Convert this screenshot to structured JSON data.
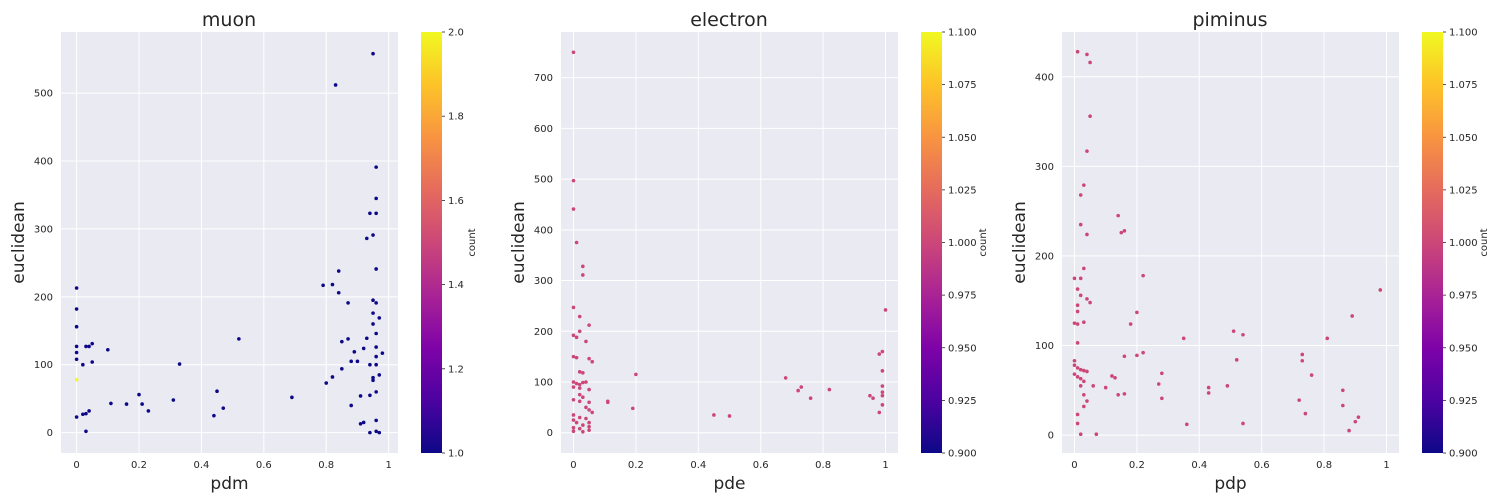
{
  "colors": {
    "axes_bg": "#EAEAF2",
    "grid": "#FFFFFF",
    "point_count_1": "#0D0887",
    "point_count_2": "#F0F921",
    "point_uniform": "#CC4778"
  },
  "chart_data": [
    {
      "type": "scatter",
      "title": "muon",
      "xlabel": "pdm",
      "ylabel": "euclidean",
      "xlim": [
        -0.05,
        1.03
      ],
      "ylim": [
        -30,
        590
      ],
      "xticks": [
        0.0,
        0.2,
        0.4,
        0.6,
        0.8,
        1.0
      ],
      "yticks": [
        0,
        100,
        200,
        300,
        400,
        500
      ],
      "grid": true,
      "colorbar": {
        "label": "count",
        "min": 1.0,
        "max": 2.0,
        "ticks": [
          "1.0",
          "1.2",
          "1.4",
          "1.6",
          "1.8",
          "2.0"
        ],
        "colormap": "plasma"
      },
      "points": [
        [
          0.0,
          213,
          1
        ],
        [
          0.0,
          182,
          1
        ],
        [
          0.0,
          156,
          1
        ],
        [
          0.0,
          127,
          1
        ],
        [
          0.0,
          118,
          1
        ],
        [
          0.0,
          108,
          1
        ],
        [
          0.0,
          78,
          2
        ],
        [
          0.0,
          23,
          1
        ],
        [
          0.02,
          27,
          1
        ],
        [
          0.03,
          28,
          1
        ],
        [
          0.03,
          2,
          1
        ],
        [
          0.02,
          100,
          1
        ],
        [
          0.03,
          127,
          1
        ],
        [
          0.04,
          127,
          1
        ],
        [
          0.04,
          32,
          1
        ],
        [
          0.05,
          104,
          1
        ],
        [
          0.05,
          131,
          1
        ],
        [
          0.1,
          122,
          1
        ],
        [
          0.11,
          43,
          1
        ],
        [
          0.16,
          42,
          1
        ],
        [
          0.2,
          56,
          1
        ],
        [
          0.21,
          42,
          1
        ],
        [
          0.23,
          32,
          1
        ],
        [
          0.31,
          48,
          1
        ],
        [
          0.33,
          101,
          1
        ],
        [
          0.44,
          25,
          1
        ],
        [
          0.45,
          61,
          1
        ],
        [
          0.47,
          36,
          1
        ],
        [
          0.52,
          138,
          1
        ],
        [
          0.69,
          52,
          1
        ],
        [
          0.79,
          217,
          1
        ],
        [
          0.8,
          73,
          1
        ],
        [
          0.82,
          218,
          1
        ],
        [
          0.82,
          82,
          1
        ],
        [
          0.83,
          512,
          1
        ],
        [
          0.84,
          238,
          1
        ],
        [
          0.84,
          206,
          1
        ],
        [
          0.85,
          134,
          1
        ],
        [
          0.85,
          94,
          1
        ],
        [
          0.87,
          191,
          1
        ],
        [
          0.87,
          138,
          1
        ],
        [
          0.88,
          105,
          1
        ],
        [
          0.88,
          40,
          1
        ],
        [
          0.89,
          119,
          1
        ],
        [
          0.9,
          105,
          1
        ],
        [
          0.91,
          54,
          1
        ],
        [
          0.91,
          13,
          1
        ],
        [
          0.92,
          124,
          1
        ],
        [
          0.92,
          15,
          1
        ],
        [
          0.93,
          286,
          1
        ],
        [
          0.93,
          139,
          1
        ],
        [
          0.94,
          323,
          1
        ],
        [
          0.94,
          100,
          1
        ],
        [
          0.94,
          55,
          1
        ],
        [
          0.94,
          0,
          1
        ],
        [
          0.95,
          558,
          1
        ],
        [
          0.95,
          291,
          1
        ],
        [
          0.95,
          195,
          1
        ],
        [
          0.95,
          176,
          1
        ],
        [
          0.95,
          160,
          1
        ],
        [
          0.95,
          81,
          1
        ],
        [
          0.95,
          77,
          1
        ],
        [
          0.96,
          391,
          1
        ],
        [
          0.96,
          345,
          1
        ],
        [
          0.96,
          323,
          1
        ],
        [
          0.96,
          241,
          1
        ],
        [
          0.96,
          191,
          1
        ],
        [
          0.96,
          146,
          1
        ],
        [
          0.96,
          126,
          1
        ],
        [
          0.96,
          112,
          1
        ],
        [
          0.96,
          100,
          1
        ],
        [
          0.96,
          60,
          1
        ],
        [
          0.96,
          18,
          1
        ],
        [
          0.96,
          2,
          1
        ],
        [
          0.97,
          169,
          1
        ],
        [
          0.97,
          85,
          1
        ],
        [
          0.97,
          0,
          1
        ],
        [
          0.98,
          117,
          1
        ]
      ]
    },
    {
      "type": "scatter",
      "title": "electron",
      "xlabel": "pde",
      "ylabel": "euclidean",
      "xlim": [
        -0.04,
        1.04
      ],
      "ylim": [
        -40,
        790
      ],
      "xticks": [
        0.0,
        0.2,
        0.4,
        0.6,
        0.8,
        1.0
      ],
      "yticks": [
        0,
        100,
        200,
        300,
        400,
        500,
        600,
        700
      ],
      "grid": true,
      "colorbar": {
        "label": "count",
        "min": 0.9,
        "max": 1.1,
        "ticks": [
          "0.900",
          "0.925",
          "0.950",
          "0.975",
          "1.000",
          "1.025",
          "1.050",
          "1.075",
          "1.100"
        ],
        "colormap": "plasma"
      },
      "points": [
        [
          0.0,
          750,
          1
        ],
        [
          0.0,
          497,
          1
        ],
        [
          0.0,
          441,
          1
        ],
        [
          0.01,
          375,
          1
        ],
        [
          0.03,
          328,
          1
        ],
        [
          0.03,
          311,
          1
        ],
        [
          0.0,
          247,
          1
        ],
        [
          0.02,
          229,
          1
        ],
        [
          0.05,
          212,
          1
        ],
        [
          0.02,
          200,
          1
        ],
        [
          0.0,
          192,
          1
        ],
        [
          0.01,
          188,
          1
        ],
        [
          0.04,
          180,
          1
        ],
        [
          0.0,
          150,
          1
        ],
        [
          0.01,
          148,
          1
        ],
        [
          0.05,
          146,
          1
        ],
        [
          0.06,
          140,
          1
        ],
        [
          0.02,
          120,
          1
        ],
        [
          0.03,
          118,
          1
        ],
        [
          0.0,
          100,
          1
        ],
        [
          0.01,
          97,
          1
        ],
        [
          0.02,
          95,
          1
        ],
        [
          0.03,
          99,
          1
        ],
        [
          0.04,
          100,
          1
        ],
        [
          0.0,
          90,
          1
        ],
        [
          0.02,
          88,
          1
        ],
        [
          0.05,
          85,
          1
        ],
        [
          0.02,
          75,
          1
        ],
        [
          0.03,
          70,
          1
        ],
        [
          0.0,
          65,
          1
        ],
        [
          0.02,
          62,
          1
        ],
        [
          0.05,
          60,
          1
        ],
        [
          0.04,
          50,
          1
        ],
        [
          0.05,
          45,
          1
        ],
        [
          0.06,
          40,
          1
        ],
        [
          0.0,
          35,
          1
        ],
        [
          0.02,
          30,
          1
        ],
        [
          0.04,
          28,
          1
        ],
        [
          0.0,
          25,
          1
        ],
        [
          0.01,
          20,
          1
        ],
        [
          0.05,
          20,
          1
        ],
        [
          0.03,
          15,
          1
        ],
        [
          0.05,
          12,
          1
        ],
        [
          0.0,
          10,
          1
        ],
        [
          0.02,
          8,
          1
        ],
        [
          0.05,
          5,
          1
        ],
        [
          0.0,
          3,
          1
        ],
        [
          0.03,
          2,
          1
        ],
        [
          0.11,
          62,
          1
        ],
        [
          0.11,
          60,
          1
        ],
        [
          0.2,
          115,
          1
        ],
        [
          0.19,
          48,
          1
        ],
        [
          0.45,
          35,
          1
        ],
        [
          0.5,
          33,
          1
        ],
        [
          0.68,
          108,
          1
        ],
        [
          0.72,
          83,
          1
        ],
        [
          0.73,
          90,
          1
        ],
        [
          0.76,
          68,
          1
        ],
        [
          0.82,
          85,
          1
        ],
        [
          0.95,
          73,
          1
        ],
        [
          0.96,
          68,
          1
        ],
        [
          0.98,
          155,
          1
        ],
        [
          0.98,
          40,
          1
        ],
        [
          0.99,
          160,
          1
        ],
        [
          0.99,
          122,
          1
        ],
        [
          0.99,
          92,
          1
        ],
        [
          0.99,
          80,
          1
        ],
        [
          0.99,
          73,
          1
        ],
        [
          0.99,
          55,
          1
        ],
        [
          1.0,
          242,
          1
        ]
      ]
    },
    {
      "type": "scatter",
      "title": "piminus",
      "xlabel": "pdp",
      "ylabel": "euclidean",
      "xlim": [
        -0.04,
        1.04
      ],
      "ylim": [
        -20,
        450
      ],
      "xticks": [
        0.0,
        0.2,
        0.4,
        0.6,
        0.8,
        1.0
      ],
      "yticks": [
        0,
        100,
        200,
        300,
        400
      ],
      "grid": true,
      "colorbar": {
        "label": "count",
        "min": 0.9,
        "max": 1.1,
        "ticks": [
          "0.900",
          "0.925",
          "0.950",
          "0.975",
          "1.000",
          "1.025",
          "1.050",
          "1.075",
          "1.100"
        ],
        "colormap": "plasma"
      },
      "points": [
        [
          0.01,
          428,
          1
        ],
        [
          0.04,
          425,
          1
        ],
        [
          0.05,
          416,
          1
        ],
        [
          0.05,
          356,
          1
        ],
        [
          0.04,
          317,
          1
        ],
        [
          0.03,
          279,
          1
        ],
        [
          0.02,
          268,
          1
        ],
        [
          0.02,
          235,
          1
        ],
        [
          0.04,
          224,
          1
        ],
        [
          0.03,
          186,
          1
        ],
        [
          0.0,
          175,
          1
        ],
        [
          0.02,
          175,
          1
        ],
        [
          0.01,
          163,
          1
        ],
        [
          0.02,
          156,
          1
        ],
        [
          0.04,
          152,
          1
        ],
        [
          0.05,
          148,
          1
        ],
        [
          0.01,
          145,
          1
        ],
        [
          0.01,
          138,
          1
        ],
        [
          0.0,
          125,
          1
        ],
        [
          0.01,
          124,
          1
        ],
        [
          0.03,
          126,
          1
        ],
        [
          0.01,
          103,
          1
        ],
        [
          0.0,
          83,
          1
        ],
        [
          0.0,
          78,
          1
        ],
        [
          0.01,
          75,
          1
        ],
        [
          0.02,
          73,
          1
        ],
        [
          0.03,
          72,
          1
        ],
        [
          0.04,
          71,
          1
        ],
        [
          0.0,
          68,
          1
        ],
        [
          0.01,
          65,
          1
        ],
        [
          0.02,
          63,
          1
        ],
        [
          0.03,
          60,
          1
        ],
        [
          0.02,
          55,
          1
        ],
        [
          0.06,
          55,
          1
        ],
        [
          0.03,
          45,
          1
        ],
        [
          0.04,
          38,
          1
        ],
        [
          0.03,
          32,
          1
        ],
        [
          0.01,
          23,
          1
        ],
        [
          0.01,
          13,
          1
        ],
        [
          0.02,
          1,
          1
        ],
        [
          0.07,
          1,
          1
        ],
        [
          0.1,
          53,
          1
        ],
        [
          0.12,
          66,
          1
        ],
        [
          0.13,
          64,
          1
        ],
        [
          0.14,
          45,
          1
        ],
        [
          0.14,
          245,
          1
        ],
        [
          0.15,
          226,
          1
        ],
        [
          0.16,
          228,
          1
        ],
        [
          0.16,
          88,
          1
        ],
        [
          0.16,
          46,
          1
        ],
        [
          0.18,
          124,
          1
        ],
        [
          0.2,
          137,
          1
        ],
        [
          0.2,
          89,
          1
        ],
        [
          0.22,
          92,
          1
        ],
        [
          0.22,
          178,
          1
        ],
        [
          0.27,
          57,
          1
        ],
        [
          0.28,
          69,
          1
        ],
        [
          0.28,
          41,
          1
        ],
        [
          0.35,
          108,
          1
        ],
        [
          0.36,
          12,
          1
        ],
        [
          0.43,
          53,
          1
        ],
        [
          0.43,
          47,
          1
        ],
        [
          0.49,
          55,
          1
        ],
        [
          0.51,
          116,
          1
        ],
        [
          0.52,
          84,
          1
        ],
        [
          0.54,
          112,
          1
        ],
        [
          0.54,
          13,
          1
        ],
        [
          0.72,
          39,
          1
        ],
        [
          0.73,
          90,
          1
        ],
        [
          0.73,
          83,
          1
        ],
        [
          0.74,
          24,
          1
        ],
        [
          0.76,
          67,
          1
        ],
        [
          0.81,
          108,
          1
        ],
        [
          0.86,
          50,
          1
        ],
        [
          0.86,
          33,
          1
        ],
        [
          0.88,
          5,
          1
        ],
        [
          0.89,
          133,
          1
        ],
        [
          0.9,
          15,
          1
        ],
        [
          0.91,
          20,
          1
        ],
        [
          0.98,
          162,
          1
        ]
      ]
    }
  ]
}
